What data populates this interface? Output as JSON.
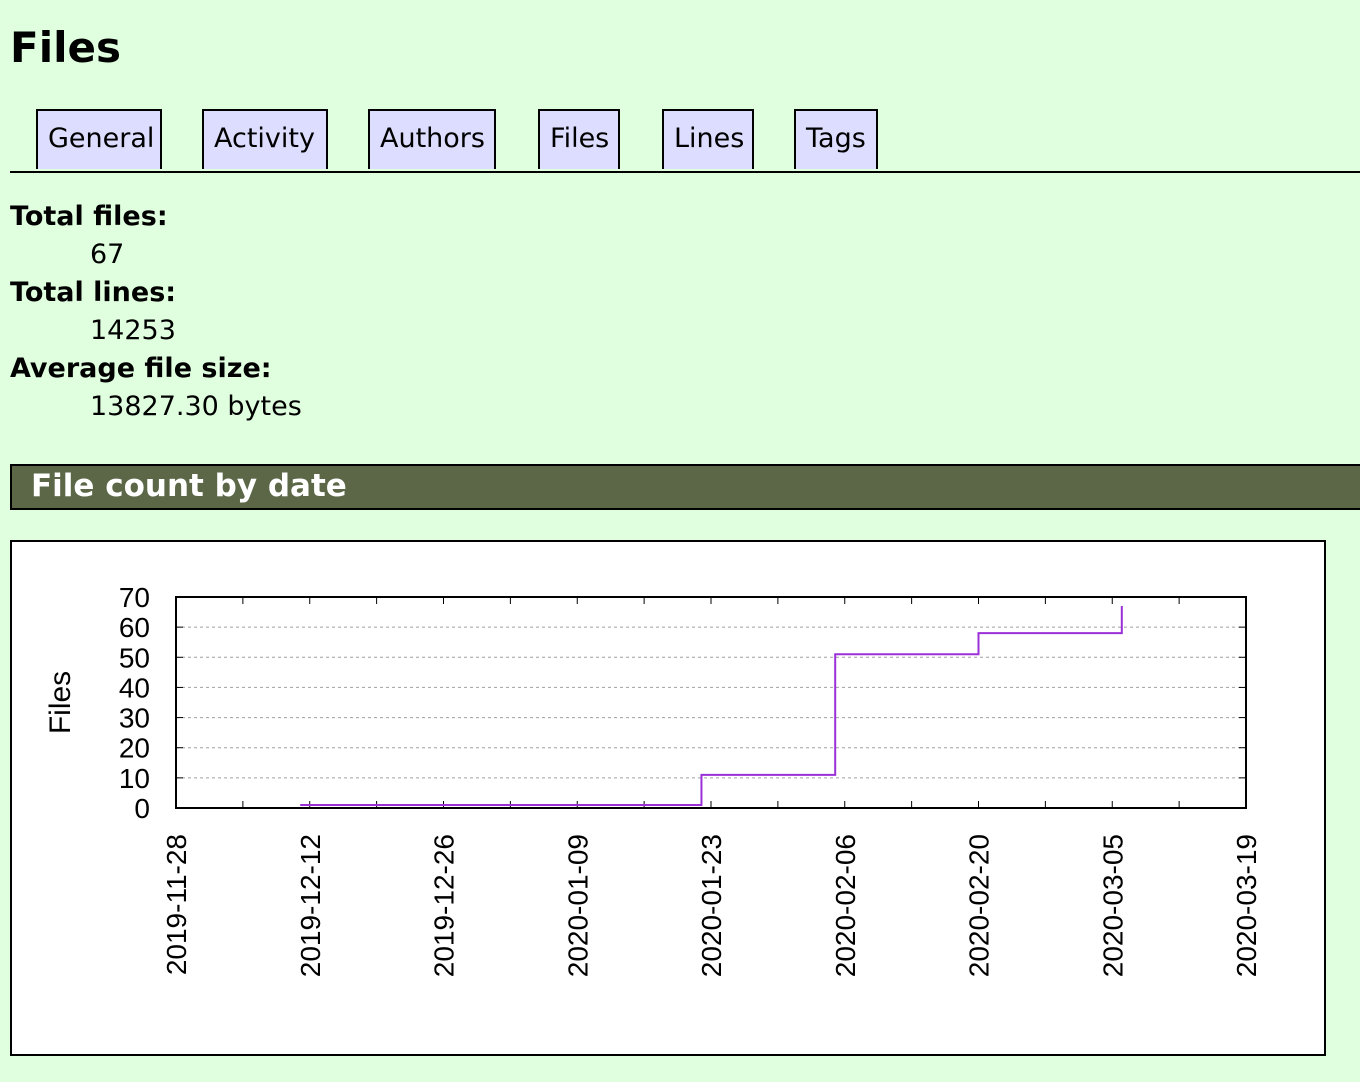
{
  "page": {
    "title": "Files"
  },
  "nav": {
    "tabs": [
      {
        "label": "General"
      },
      {
        "label": "Activity"
      },
      {
        "label": "Authors"
      },
      {
        "label": "Files"
      },
      {
        "label": "Lines"
      },
      {
        "label": "Tags"
      }
    ]
  },
  "stats": {
    "total_files_label": "Total files:",
    "total_files_value": "67",
    "total_lines_label": "Total lines:",
    "total_lines_value": "14253",
    "avg_size_label": "Average file size:",
    "avg_size_value": "13827.30 bytes"
  },
  "section": {
    "title": "File count by date"
  },
  "colors": {
    "background": "#dfffdf",
    "tab_background": "#ddddff",
    "section_header": "#5b6747",
    "series_line": "#9b30d9"
  },
  "chart_data": {
    "type": "line",
    "step": true,
    "ylabel": "Files",
    "xlabel": "",
    "ylim": [
      0,
      70
    ],
    "xlim": [
      "2019-11-28",
      "2020-03-19"
    ],
    "yticks": [
      "0",
      "10",
      "20",
      "30",
      "40",
      "50",
      "60",
      "70"
    ],
    "xticks": [
      "2019-11-28",
      "2019-12-12",
      "2019-12-26",
      "2020-01-09",
      "2020-01-23",
      "2020-02-06",
      "2020-02-20",
      "2020-03-05",
      "2020-03-19"
    ],
    "grid": true,
    "legend": "none",
    "series": [
      {
        "x": [
          "2019-12-11",
          "2020-01-22",
          "2020-02-05",
          "2020-02-20",
          "2020-03-06"
        ],
        "y": [
          1,
          11,
          51,
          58,
          67
        ]
      }
    ]
  }
}
